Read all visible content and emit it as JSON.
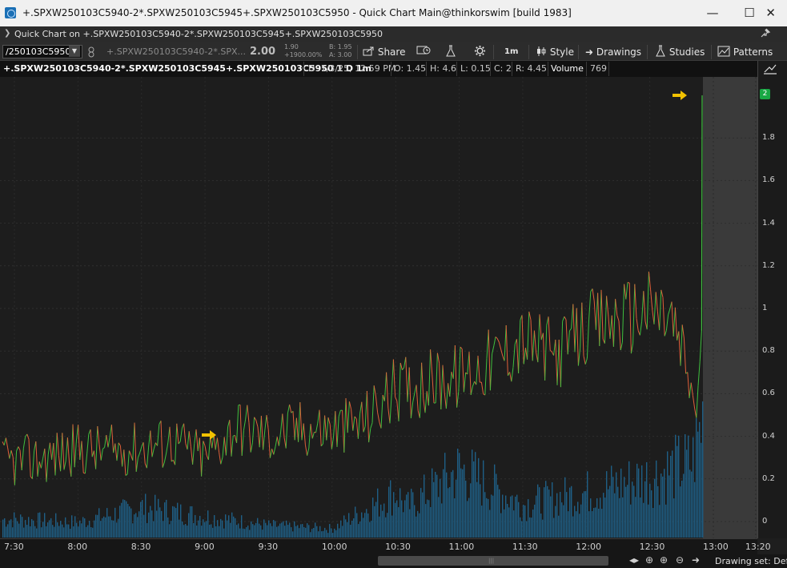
{
  "window": {
    "title": "+.SPXW250103C5940-2*.SPXW250103C5945+.SPXW250103C5950 - Quick Chart Main@thinkorswim [build 1983]",
    "min_glyph": "—",
    "max_glyph": "☐",
    "close_glyph": "✕"
  },
  "header": {
    "chevron": "❯",
    "title": "Quick Chart on +.SPXW250103C5940-2*.SPXW250103C5945+.SPXW250103C5950",
    "pin": "📌"
  },
  "toolbar": {
    "symbol": "/250103C5950",
    "symbol_desc": "+.SPXW250103C5940-2*.SPX...",
    "last": "2.00",
    "change_top": "1.90",
    "change_bottom": "+1900.00%",
    "bid": "B: 1.95",
    "ask": "A: 3.00",
    "share_label": "Share",
    "timeframe_label": "1m",
    "style_label": "Style",
    "drawings_label": "Drawings",
    "studies_label": "Studies",
    "patterns_label": "Patterns"
  },
  "infobar": {
    "symbol": "+.SPXW250103C5940-2*.SPXW250103C5945+.SPXW250103C5950 1 D 1m",
    "date": "D: 1/3/25, 12:59 PM",
    "open": "O: 1.45",
    "high": "H: 4.6",
    "low": "L: 0.15",
    "close": "C: 2",
    "range": "R: 4.45",
    "volume_label": "Volume",
    "volume_value": "769"
  },
  "price_axis": {
    "labels": [
      "1.8",
      "1.6",
      "1.4",
      "1.2",
      "1",
      "0.8",
      "0.6",
      "0.4",
      "0.2",
      "0"
    ],
    "last_badge": "2"
  },
  "time_axis": {
    "labels": [
      "7:30",
      "8:00",
      "8:30",
      "9:00",
      "9:30",
      "10:00",
      "10:30",
      "11:00",
      "11:30",
      "12:00",
      "12:30",
      "13:00",
      "13:20"
    ]
  },
  "bottom": {
    "drawing_set": "Drawing set: Defa"
  },
  "colors": {
    "up": "#3fbf3f",
    "down": "#e0603a",
    "volume": "#1f5f86",
    "arrow": "#f2c200",
    "badge": "#18a844"
  },
  "chart_data": {
    "type": "line",
    "title": "",
    "xlabel": "",
    "ylabel": "",
    "ylim": [
      0,
      2
    ],
    "x_range": [
      "7:25",
      "13:22"
    ],
    "price": {
      "x": [
        "7:30",
        "7:45",
        "8:00",
        "8:15",
        "8:30",
        "8:45",
        "9:00",
        "9:15",
        "9:30",
        "9:45",
        "10:00",
        "10:15",
        "10:30",
        "10:45",
        "11:00",
        "11:15",
        "11:30",
        "11:45",
        "12:00",
        "12:15",
        "12:30",
        "12:40",
        "12:48",
        "12:52",
        "12:55",
        "12:57",
        "12:59"
      ],
      "y": [
        0.28,
        0.3,
        0.34,
        0.33,
        0.35,
        0.38,
        0.3,
        0.45,
        0.4,
        0.44,
        0.43,
        0.47,
        0.62,
        0.65,
        0.68,
        0.75,
        0.85,
        0.78,
        0.9,
        0.95,
        1.0,
        0.95,
        0.7,
        0.5,
        0.95,
        1.5,
        2.0
      ]
    },
    "volume": {
      "x": [
        "7:30",
        "8:00",
        "8:30",
        "9:00",
        "9:30",
        "10:00",
        "10:30",
        "10:35",
        "11:00",
        "11:30",
        "12:00",
        "12:30",
        "12:50",
        "12:58"
      ],
      "y": [
        0.12,
        0.1,
        0.2,
        0.14,
        0.08,
        0.06,
        0.3,
        0.2,
        0.45,
        0.22,
        0.3,
        0.4,
        0.5,
        1.0
      ]
    }
  }
}
